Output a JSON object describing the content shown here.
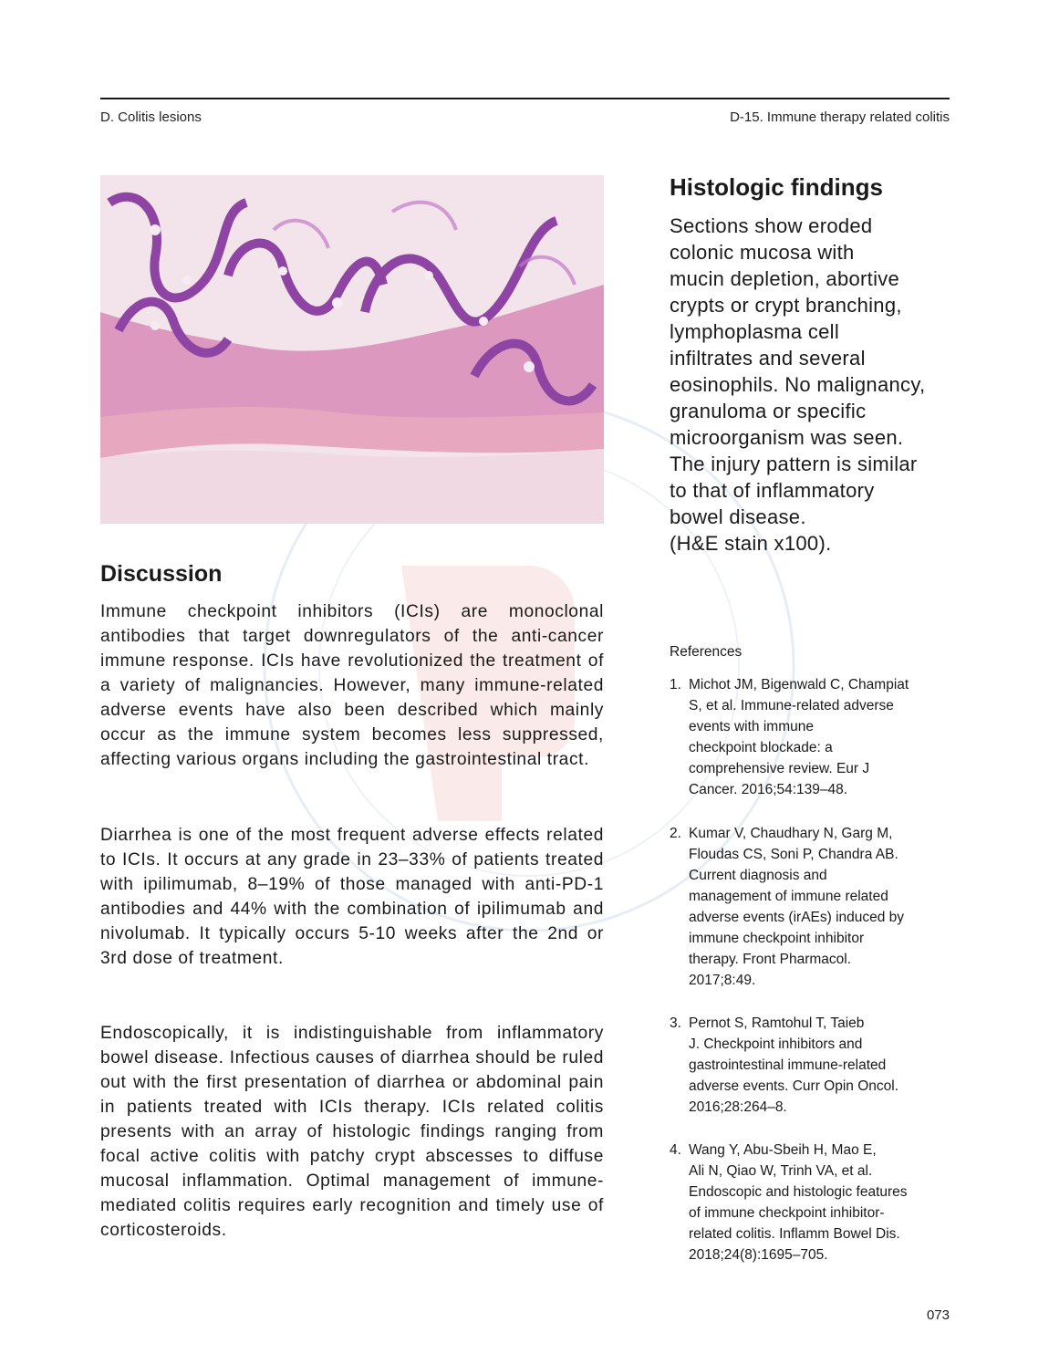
{
  "header": {
    "left": "D. Colitis lesions",
    "right": "D-15. Immune therapy related colitis"
  },
  "figure": {
    "icon": "histology-micrograph-image",
    "colors": {
      "background": "#f2dce6",
      "epithelium": "#9a4fa8",
      "stroma": "#d98fb8",
      "muscle": "#e4a0b8"
    }
  },
  "histologic": {
    "title": "Histologic findings",
    "body": "Sections show eroded\ncolonic mucosa with\nmucin depletion, abortive\ncrypts or crypt branching,\nlymphoplasma cell\ninfiltrates and several\neosinophils. No malignancy,\ngranuloma or specific\nmicroorganism was seen.\nThe injury pattern is similar\nto that of inflammatory\nbowel disease.\n(H&E stain x100)."
  },
  "discussion": {
    "title": "Discussion",
    "paragraphs": [
      "Immune checkpoint inhibitors (ICIs) are monoclonal antibodies that target downregulators of the anti-cancer immune response. ICIs have revolutionized the treatment of a variety of malignancies. However, many immune-related adverse events have also been described which mainly occur as the immune system becomes less suppressed, affecting various organs including the gastrointestinal tract.",
      "Diarrhea is one of the most frequent adverse effects related to ICIs. It occurs at any grade in 23–33% of patients treated with ipilimumab, 8–19% of those managed with anti-PD-1 antibodies and 44% with the combination of ipilimumab and nivolumab. It typically occurs 5-10 weeks after the 2nd or 3rd dose of treatment.",
      "Endoscopically, it is indistinguishable from inflammatory bowel disease. Infectious causes of diarrhea should be ruled out with the first presentation of diarrhea or abdominal pain in patients treated with ICIs therapy. ICIs related colitis presents with an array of histologic findings ranging from focal active colitis with patchy crypt abscesses to diffuse mucosal inflammation. Optimal management of immune-mediated colitis requires early recognition and timely use of corticosteroids."
    ]
  },
  "references": {
    "title": "References",
    "items": [
      {
        "num": "1.",
        "text": "Michot JM, Bigenwald C, Champiat\nS, et al. Immune-related adverse\nevents with immune\ncheckpoint blockade: a\ncomprehensive review. Eur J\nCancer. 2016;54:139–48."
      },
      {
        "num": "2.",
        "text": "Kumar V, Chaudhary N, Garg M,\nFloudas CS, Soni P, Chandra AB.\nCurrent diagnosis and\nmanagement of immune related\nadverse events (irAEs) induced by\nimmune checkpoint inhibitor\ntherapy. Front Pharmacol.\n2017;8:49."
      },
      {
        "num": "3.",
        "text": "Pernot S, Ramtohul T, Taieb\nJ. Checkpoint inhibitors and\ngastrointestinal immune-related\nadverse events. Curr Opin Oncol.\n2016;28:264–8."
      },
      {
        "num": "4.",
        "text": "Wang Y, Abu-Sbeih H, Mao E,\nAli N, Qiao W, Trinh VA, et al.\nEndoscopic and histologic features\nof immune checkpoint inhibitor-\nrelated colitis. Inflamm Bowel Dis.\n2018;24(8):1695–705."
      }
    ]
  },
  "page_number": "073"
}
